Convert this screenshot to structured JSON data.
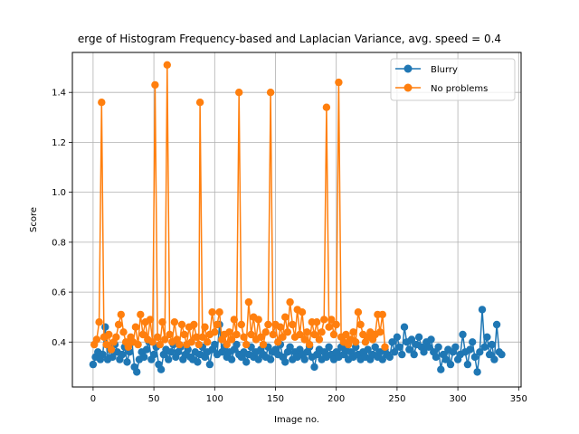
{
  "chart_data": {
    "type": "line",
    "title": "erge of Histogram Frequency-based and Laplacian Variance, avg. speed = 0.4",
    "xlabel": "Image no.",
    "ylabel": "Score",
    "xlim": [
      -17,
      352
    ],
    "ylim": [
      0.22,
      1.56
    ],
    "xticks": [
      0,
      50,
      100,
      150,
      200,
      250,
      300,
      350
    ],
    "yticks": [
      0.4,
      0.6,
      0.8,
      1.0,
      1.2,
      1.4
    ],
    "ytick_labels": [
      "0.4",
      "0.6",
      "0.8",
      "1.0",
      "1.2",
      "1.4"
    ],
    "grid": true,
    "legend_position": "top-right",
    "legend": [
      {
        "label": "Blurry",
        "color": "#1f77b4"
      },
      {
        "label": "No problems",
        "color": "#ff7f0e"
      }
    ],
    "series": [
      {
        "name": "Blurry",
        "color": "#1f77b4",
        "points": [
          [
            0,
            0.31
          ],
          [
            2,
            0.34
          ],
          [
            4,
            0.36
          ],
          [
            6,
            0.33
          ],
          [
            8,
            0.35
          ],
          [
            10,
            0.46
          ],
          [
            12,
            0.33
          ],
          [
            14,
            0.37
          ],
          [
            16,
            0.34
          ],
          [
            18,
            0.39
          ],
          [
            20,
            0.36
          ],
          [
            22,
            0.33
          ],
          [
            24,
            0.35
          ],
          [
            26,
            0.38
          ],
          [
            28,
            0.32
          ],
          [
            30,
            0.36
          ],
          [
            32,
            0.4
          ],
          [
            34,
            0.3
          ],
          [
            36,
            0.28
          ],
          [
            38,
            0.33
          ],
          [
            40,
            0.36
          ],
          [
            42,
            0.34
          ],
          [
            44,
            0.37
          ],
          [
            46,
            0.4
          ],
          [
            48,
            0.33
          ],
          [
            50,
            0.35
          ],
          [
            52,
            0.38
          ],
          [
            54,
            0.31
          ],
          [
            56,
            0.29
          ],
          [
            58,
            0.35
          ],
          [
            60,
            0.37
          ],
          [
            62,
            0.33
          ],
          [
            64,
            0.36
          ],
          [
            66,
            0.39
          ],
          [
            68,
            0.34
          ],
          [
            70,
            0.36
          ],
          [
            72,
            0.38
          ],
          [
            74,
            0.33
          ],
          [
            76,
            0.35
          ],
          [
            78,
            0.37
          ],
          [
            80,
            0.34
          ],
          [
            82,
            0.33
          ],
          [
            84,
            0.36
          ],
          [
            86,
            0.32
          ],
          [
            88,
            0.35
          ],
          [
            90,
            0.38
          ],
          [
            92,
            0.34
          ],
          [
            94,
            0.36
          ],
          [
            96,
            0.31
          ],
          [
            98,
            0.37
          ],
          [
            100,
            0.39
          ],
          [
            102,
            0.35
          ],
          [
            104,
            0.47
          ],
          [
            106,
            0.36
          ],
          [
            108,
            0.38
          ],
          [
            110,
            0.34
          ],
          [
            112,
            0.36
          ],
          [
            114,
            0.33
          ],
          [
            116,
            0.37
          ],
          [
            118,
            0.39
          ],
          [
            120,
            0.35
          ],
          [
            122,
            0.34
          ],
          [
            124,
            0.36
          ],
          [
            126,
            0.32
          ],
          [
            128,
            0.35
          ],
          [
            130,
            0.38
          ],
          [
            132,
            0.34
          ],
          [
            134,
            0.36
          ],
          [
            136,
            0.33
          ],
          [
            138,
            0.37
          ],
          [
            140,
            0.35
          ],
          [
            142,
            0.34
          ],
          [
            144,
            0.38
          ],
          [
            146,
            0.33
          ],
          [
            148,
            0.36
          ],
          [
            150,
            0.37
          ],
          [
            152,
            0.35
          ],
          [
            154,
            0.39
          ],
          [
            156,
            0.34
          ],
          [
            158,
            0.32
          ],
          [
            160,
            0.36
          ],
          [
            162,
            0.38
          ],
          [
            164,
            0.33
          ],
          [
            166,
            0.36
          ],
          [
            168,
            0.34
          ],
          [
            170,
            0.37
          ],
          [
            172,
            0.35
          ],
          [
            174,
            0.33
          ],
          [
            176,
            0.36
          ],
          [
            178,
            0.38
          ],
          [
            180,
            0.34
          ],
          [
            182,
            0.3
          ],
          [
            184,
            0.35
          ],
          [
            186,
            0.37
          ],
          [
            188,
            0.33
          ],
          [
            190,
            0.36
          ],
          [
            192,
            0.34
          ],
          [
            194,
            0.38
          ],
          [
            196,
            0.35
          ],
          [
            198,
            0.33
          ],
          [
            200,
            0.36
          ],
          [
            202,
            0.34
          ],
          [
            204,
            0.38
          ],
          [
            206,
            0.35
          ],
          [
            208,
            0.37
          ],
          [
            210,
            0.33
          ],
          [
            212,
            0.36
          ],
          [
            214,
            0.34
          ],
          [
            216,
            0.38
          ],
          [
            218,
            0.35
          ],
          [
            220,
            0.33
          ],
          [
            222,
            0.36
          ],
          [
            224,
            0.34
          ],
          [
            226,
            0.37
          ],
          [
            228,
            0.33
          ],
          [
            230,
            0.35
          ],
          [
            232,
            0.38
          ],
          [
            234,
            0.34
          ],
          [
            236,
            0.36
          ],
          [
            238,
            0.33
          ],
          [
            240,
            0.37
          ],
          [
            242,
            0.35
          ],
          [
            244,
            0.34
          ],
          [
            246,
            0.4
          ],
          [
            248,
            0.36
          ],
          [
            250,
            0.42
          ],
          [
            252,
            0.38
          ],
          [
            254,
            0.35
          ],
          [
            256,
            0.46
          ],
          [
            258,
            0.4
          ],
          [
            260,
            0.37
          ],
          [
            262,
            0.41
          ],
          [
            264,
            0.35
          ],
          [
            266,
            0.39
          ],
          [
            268,
            0.42
          ],
          [
            270,
            0.38
          ],
          [
            272,
            0.36
          ],
          [
            274,
            0.4
          ],
          [
            276,
            0.38
          ],
          [
            278,
            0.41
          ],
          [
            280,
            0.36
          ],
          [
            282,
            0.34
          ],
          [
            284,
            0.38
          ],
          [
            286,
            0.29
          ],
          [
            288,
            0.35
          ],
          [
            290,
            0.33
          ],
          [
            292,
            0.37
          ],
          [
            294,
            0.31
          ],
          [
            296,
            0.36
          ],
          [
            298,
            0.38
          ],
          [
            300,
            0.33
          ],
          [
            302,
            0.35
          ],
          [
            304,
            0.43
          ],
          [
            306,
            0.36
          ],
          [
            308,
            0.31
          ],
          [
            310,
            0.37
          ],
          [
            312,
            0.4
          ],
          [
            314,
            0.34
          ],
          [
            316,
            0.28
          ],
          [
            318,
            0.36
          ],
          [
            320,
            0.53
          ],
          [
            322,
            0.38
          ],
          [
            324,
            0.42
          ],
          [
            326,
            0.35
          ],
          [
            328,
            0.39
          ],
          [
            330,
            0.33
          ],
          [
            332,
            0.47
          ],
          [
            334,
            0.36
          ],
          [
            336,
            0.35
          ]
        ]
      },
      {
        "name": "No problems",
        "color": "#ff7f0e",
        "points": [
          [
            1,
            0.39
          ],
          [
            3,
            0.41
          ],
          [
            5,
            0.48
          ],
          [
            7,
            1.36
          ],
          [
            9,
            0.42
          ],
          [
            11,
            0.39
          ],
          [
            13,
            0.43
          ],
          [
            15,
            0.37
          ],
          [
            17,
            0.4
          ],
          [
            19,
            0.42
          ],
          [
            21,
            0.47
          ],
          [
            23,
            0.51
          ],
          [
            25,
            0.44
          ],
          [
            27,
            0.4
          ],
          [
            29,
            0.38
          ],
          [
            31,
            0.42
          ],
          [
            33,
            0.4
          ],
          [
            35,
            0.46
          ],
          [
            37,
            0.39
          ],
          [
            39,
            0.51
          ],
          [
            41,
            0.43
          ],
          [
            43,
            0.48
          ],
          [
            45,
            0.41
          ],
          [
            47,
            0.49
          ],
          [
            49,
            0.4
          ],
          [
            51,
            1.43
          ],
          [
            53,
            0.42
          ],
          [
            55,
            0.39
          ],
          [
            57,
            0.48
          ],
          [
            59,
            0.41
          ],
          [
            61,
            1.51
          ],
          [
            63,
            0.43
          ],
          [
            65,
            0.4
          ],
          [
            67,
            0.48
          ],
          [
            69,
            0.41
          ],
          [
            71,
            0.39
          ],
          [
            73,
            0.47
          ],
          [
            75,
            0.43
          ],
          [
            77,
            0.39
          ],
          [
            79,
            0.46
          ],
          [
            81,
            0.4
          ],
          [
            83,
            0.47
          ],
          [
            85,
            0.42
          ],
          [
            87,
            0.39
          ],
          [
            88,
            1.36
          ],
          [
            90,
            0.42
          ],
          [
            92,
            0.46
          ],
          [
            94,
            0.4
          ],
          [
            96,
            0.43
          ],
          [
            98,
            0.52
          ],
          [
            100,
            0.44
          ],
          [
            102,
            0.47
          ],
          [
            104,
            0.52
          ],
          [
            106,
            0.41
          ],
          [
            108,
            0.43
          ],
          [
            110,
            0.39
          ],
          [
            112,
            0.44
          ],
          [
            114,
            0.41
          ],
          [
            116,
            0.49
          ],
          [
            118,
            0.43
          ],
          [
            120,
            1.4
          ],
          [
            122,
            0.47
          ],
          [
            124,
            0.42
          ],
          [
            126,
            0.39
          ],
          [
            128,
            0.56
          ],
          [
            130,
            0.43
          ],
          [
            132,
            0.5
          ],
          [
            134,
            0.41
          ],
          [
            136,
            0.49
          ],
          [
            138,
            0.42
          ],
          [
            140,
            0.39
          ],
          [
            142,
            0.44
          ],
          [
            144,
            0.47
          ],
          [
            146,
            1.4
          ],
          [
            148,
            0.43
          ],
          [
            150,
            0.47
          ],
          [
            152,
            0.4
          ],
          [
            154,
            0.46
          ],
          [
            156,
            0.42
          ],
          [
            158,
            0.5
          ],
          [
            160,
            0.44
          ],
          [
            162,
            0.56
          ],
          [
            164,
            0.47
          ],
          [
            166,
            0.42
          ],
          [
            168,
            0.53
          ],
          [
            170,
            0.43
          ],
          [
            172,
            0.52
          ],
          [
            174,
            0.41
          ],
          [
            176,
            0.44
          ],
          [
            178,
            0.39
          ],
          [
            180,
            0.48
          ],
          [
            182,
            0.43
          ],
          [
            184,
            0.48
          ],
          [
            186,
            0.41
          ],
          [
            188,
            0.44
          ],
          [
            190,
            0.49
          ],
          [
            192,
            1.34
          ],
          [
            194,
            0.46
          ],
          [
            196,
            0.49
          ],
          [
            198,
            0.43
          ],
          [
            200,
            0.47
          ],
          [
            202,
            1.44
          ],
          [
            204,
            0.42
          ],
          [
            206,
            0.4
          ],
          [
            208,
            0.43
          ],
          [
            210,
            0.39
          ],
          [
            212,
            0.41
          ],
          [
            214,
            0.44
          ],
          [
            216,
            0.4
          ],
          [
            218,
            0.52
          ],
          [
            220,
            0.47
          ],
          [
            222,
            0.43
          ],
          [
            224,
            0.4
          ],
          [
            226,
            0.42
          ],
          [
            228,
            0.44
          ],
          [
            230,
            0.41
          ],
          [
            232,
            0.43
          ],
          [
            234,
            0.51
          ],
          [
            236,
            0.44
          ],
          [
            238,
            0.51
          ],
          [
            240,
            0.38
          ]
        ]
      }
    ]
  }
}
